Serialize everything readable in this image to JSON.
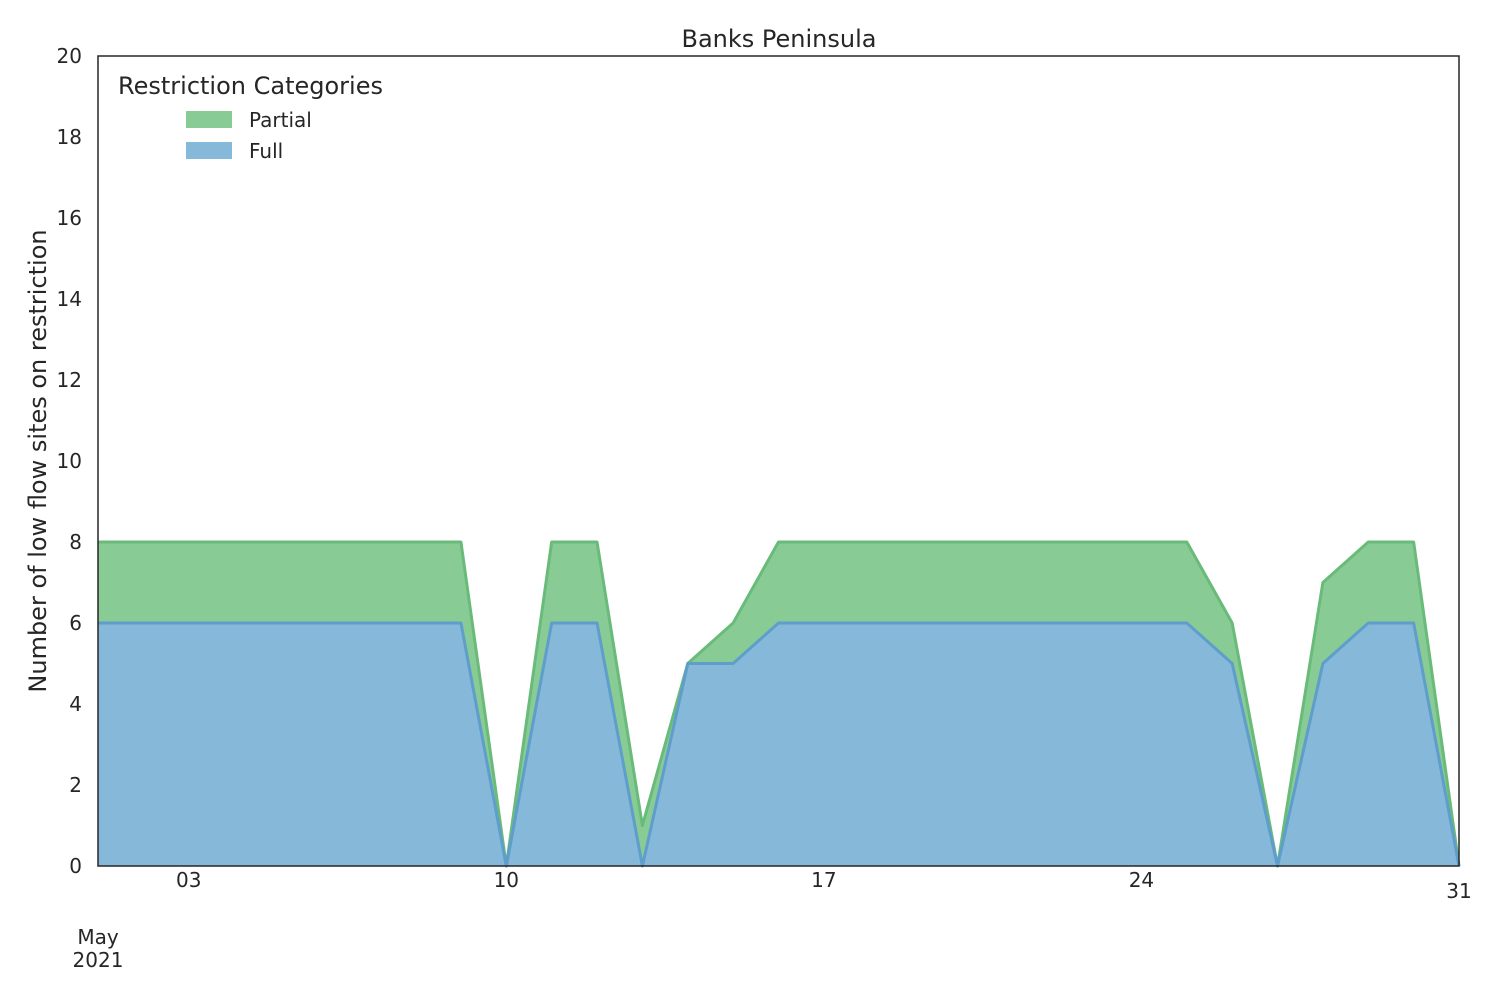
{
  "chart_data": {
    "type": "area",
    "stacked": true,
    "title": "Banks Peninsula",
    "xlabel": "",
    "ylabel": "Number of low flow sites on restriction",
    "ylim": [
      0,
      20
    ],
    "yticks": [
      0,
      2,
      4,
      6,
      8,
      10,
      12,
      14,
      16,
      18,
      20
    ],
    "xlim": [
      1,
      31
    ],
    "xticks": [
      {
        "day": 3,
        "label": "03"
      },
      {
        "day": 10,
        "label": "10"
      },
      {
        "day": 17,
        "label": "17"
      },
      {
        "day": 24,
        "label": "24"
      },
      {
        "day": 31,
        "label": "31"
      }
    ],
    "x_month_label": "May",
    "x_year_label": "2021",
    "grid": false,
    "legend": {
      "title": "Restriction Categories",
      "placement": "top-left",
      "entries": [
        "Partial",
        "Full"
      ]
    },
    "x": [
      "2021-05-01",
      "2021-05-02",
      "2021-05-03",
      "2021-05-04",
      "2021-05-05",
      "2021-05-06",
      "2021-05-07",
      "2021-05-08",
      "2021-05-09",
      "2021-05-10",
      "2021-05-11",
      "2021-05-12",
      "2021-05-13",
      "2021-05-14",
      "2021-05-15",
      "2021-05-16",
      "2021-05-17",
      "2021-05-18",
      "2021-05-19",
      "2021-05-20",
      "2021-05-21",
      "2021-05-22",
      "2021-05-23",
      "2021-05-24",
      "2021-05-25",
      "2021-05-26",
      "2021-05-27",
      "2021-05-28",
      "2021-05-29",
      "2021-05-30",
      "2021-05-31"
    ],
    "series": [
      {
        "name": "Full",
        "color": "#86b8da",
        "edge": "#5f9ecb",
        "values": [
          6,
          6,
          6,
          6,
          6,
          6,
          6,
          6,
          6,
          0,
          6,
          6,
          0,
          5,
          5,
          6,
          6,
          6,
          6,
          6,
          6,
          6,
          6,
          6,
          6,
          5,
          0,
          5,
          6,
          6,
          0
        ]
      },
      {
        "name": "Partial",
        "color": "#89cb95",
        "edge": "#69bb7a",
        "values": [
          2,
          2,
          2,
          2,
          2,
          2,
          2,
          2,
          2,
          0,
          2,
          2,
          1,
          0,
          1,
          2,
          2,
          2,
          2,
          2,
          2,
          2,
          2,
          2,
          2,
          1,
          0,
          2,
          2,
          2,
          0
        ]
      }
    ]
  }
}
